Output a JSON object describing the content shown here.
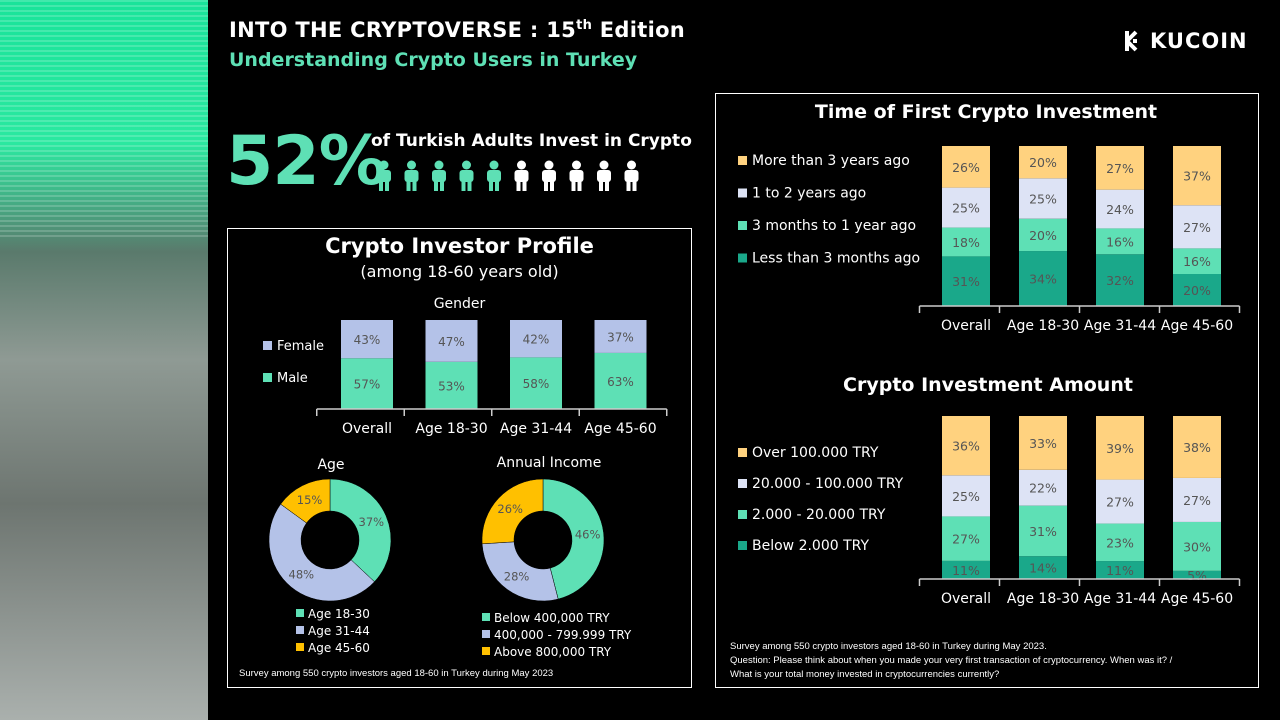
{
  "header": {
    "title_main": "INTO THE CRYPTOVERSE : 15",
    "title_sup": "th",
    "title_end": " Edition",
    "subtitle": "Understanding Crypto Users in Turkey",
    "logo": "KUCOIN"
  },
  "headline": {
    "value": "52%",
    "caption": "of Turkish Adults Invest in Crypto",
    "people_total": 10,
    "people_highlighted": 5
  },
  "profile": {
    "title": "Crypto Investor Profile",
    "subtitle": "(among 18-60 years old)",
    "gender_title": "Gender",
    "age_title": "Age",
    "income_title": "Annual Income",
    "footnote": "Survey among 550 crypto investors aged 18-60 in Turkey during May 2023"
  },
  "right": {
    "footnote_1": "Survey among 550 crypto investors aged 18-60 in Turkey  during May 2023.",
    "footnote_2": "Question: Please think about when you made your very first transaction of cryptocurrency. When was it? /",
    "footnote_3": "What is your total money invested in cryptocurrencies currently?"
  },
  "colors": {
    "accent": "#5ee0b5",
    "teal": "#1aa88a",
    "lavender": "#b4c2e8",
    "light_lavender": "#dde3f5",
    "yellow": "#ffd27f",
    "gold": "#ffc000"
  },
  "chart_data": [
    {
      "id": "gender",
      "type": "bar",
      "stacked": true,
      "title": "Gender",
      "categories": [
        "Overall",
        "Age 18-30",
        "Age 31-44",
        "Age 45-60"
      ],
      "series": [
        {
          "name": "Male",
          "color": "#5ee0b5",
          "values": [
            57,
            53,
            58,
            63
          ]
        },
        {
          "name": "Female",
          "color": "#b4c2e8",
          "values": [
            43,
            47,
            42,
            37
          ]
        }
      ],
      "ylim": [
        0,
        100
      ],
      "legend": "left"
    },
    {
      "id": "age",
      "type": "pie",
      "donut": true,
      "title": "Age",
      "labels": [
        "Age 18-30",
        "Age 31-44",
        "Age 45-60"
      ],
      "values": [
        37,
        48,
        15
      ],
      "colors": [
        "#5ee0b5",
        "#b4c2e8",
        "#ffc000"
      ],
      "legend": "bottom"
    },
    {
      "id": "income",
      "type": "pie",
      "donut": true,
      "title": "Annual Income",
      "labels": [
        "Below 400,000 TRY",
        "400,000 - 799.999 TRY",
        "Above 800,000 TRY"
      ],
      "values": [
        46,
        28,
        26
      ],
      "colors": [
        "#5ee0b5",
        "#b4c2e8",
        "#ffc000"
      ],
      "legend": "bottom"
    },
    {
      "id": "first",
      "type": "bar",
      "stacked": true,
      "title": "Time of First Crypto Investment",
      "categories": [
        "Overall",
        "Age 18-30",
        "Age 31-44",
        "Age 45-60"
      ],
      "series": [
        {
          "name": "Less than 3 months ago",
          "color": "#1aa88a",
          "values": [
            31,
            34,
            32,
            20
          ]
        },
        {
          "name": "3 months to 1 year ago",
          "color": "#5ee0b5",
          "values": [
            18,
            20,
            16,
            16
          ]
        },
        {
          "name": "1 to 2 years ago",
          "color": "#dde3f5",
          "values": [
            25,
            25,
            24,
            27
          ]
        },
        {
          "name": "More than 3 years ago",
          "color": "#ffd27f",
          "values": [
            26,
            20,
            27,
            37
          ]
        }
      ],
      "ylim": [
        0,
        100
      ],
      "legend": "left"
    },
    {
      "id": "amount",
      "type": "bar",
      "stacked": true,
      "title": "Crypto Investment Amount",
      "categories": [
        "Overall",
        "Age 18-30",
        "Age 31-44",
        "Age 45-60"
      ],
      "series": [
        {
          "name": "Below 2.000 TRY",
          "color": "#1aa88a",
          "values": [
            11,
            14,
            11,
            5
          ]
        },
        {
          "name": "2.000 - 20.000 TRY",
          "color": "#5ee0b5",
          "values": [
            27,
            31,
            23,
            30
          ]
        },
        {
          "name": "20.000 - 100.000 TRY",
          "color": "#dde3f5",
          "values": [
            25,
            22,
            27,
            27
          ]
        },
        {
          "name": "Over 100.000 TRY",
          "color": "#ffd27f",
          "values": [
            36,
            33,
            39,
            38
          ]
        }
      ],
      "ylim": [
        0,
        100
      ],
      "legend": "left"
    }
  ]
}
